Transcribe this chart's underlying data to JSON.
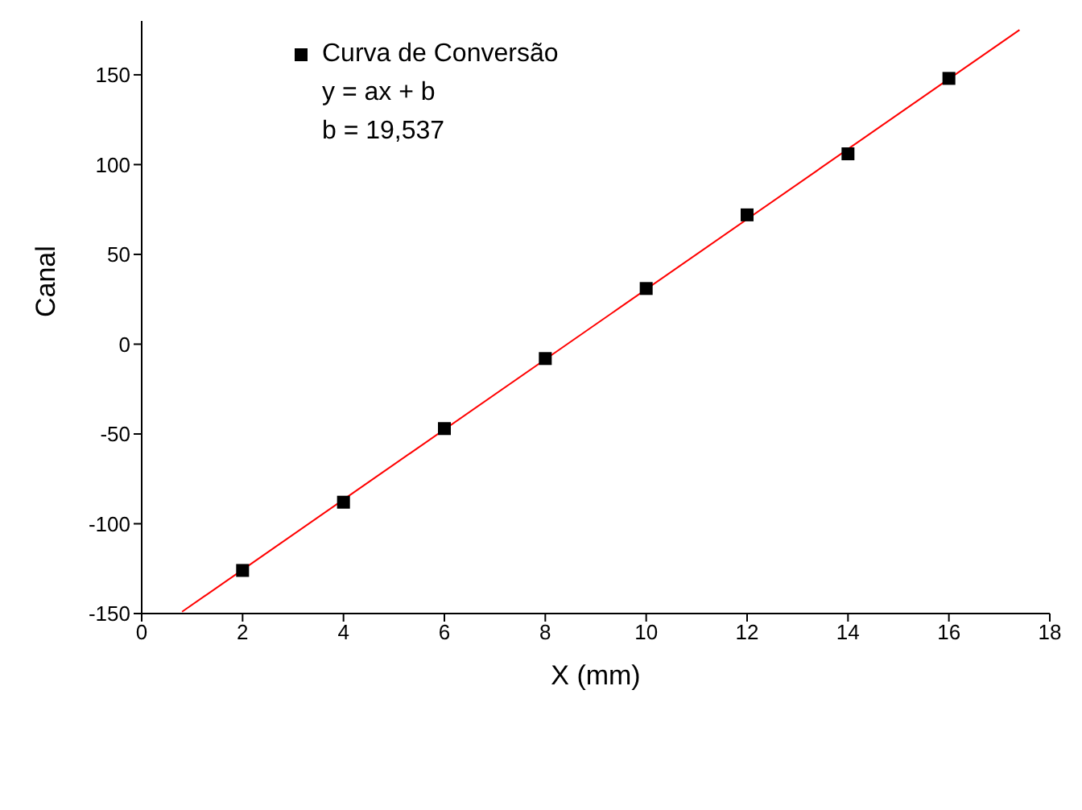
{
  "chart_data": {
    "type": "scatter",
    "xlabel": "X (mm)",
    "ylabel": "Canal",
    "xlim": [
      0,
      18
    ],
    "xticks": [
      0,
      2,
      4,
      6,
      8,
      10,
      12,
      14,
      16,
      18
    ],
    "ylim": [
      -150,
      180
    ],
    "yticks": [
      -150,
      -100,
      -50,
      0,
      50,
      100,
      150
    ],
    "grid": false,
    "legend": "top left",
    "marker": "square",
    "series": [
      {
        "name": "Curva de Conversão",
        "color": "#000000",
        "x": [
          2,
          4,
          6,
          8,
          10,
          12,
          14,
          16
        ],
        "values": [
          -126,
          -88,
          -47,
          -8,
          31,
          72,
          106,
          148
        ]
      },
      {
        "type": "line",
        "color": "#ff0000",
        "marker": "none",
        "x": [
          0.8,
          17.4
        ],
        "values": [
          -149,
          175
        ]
      }
    ],
    "annotations": [
      "y = ax + b",
      "b = 19,537"
    ]
  }
}
